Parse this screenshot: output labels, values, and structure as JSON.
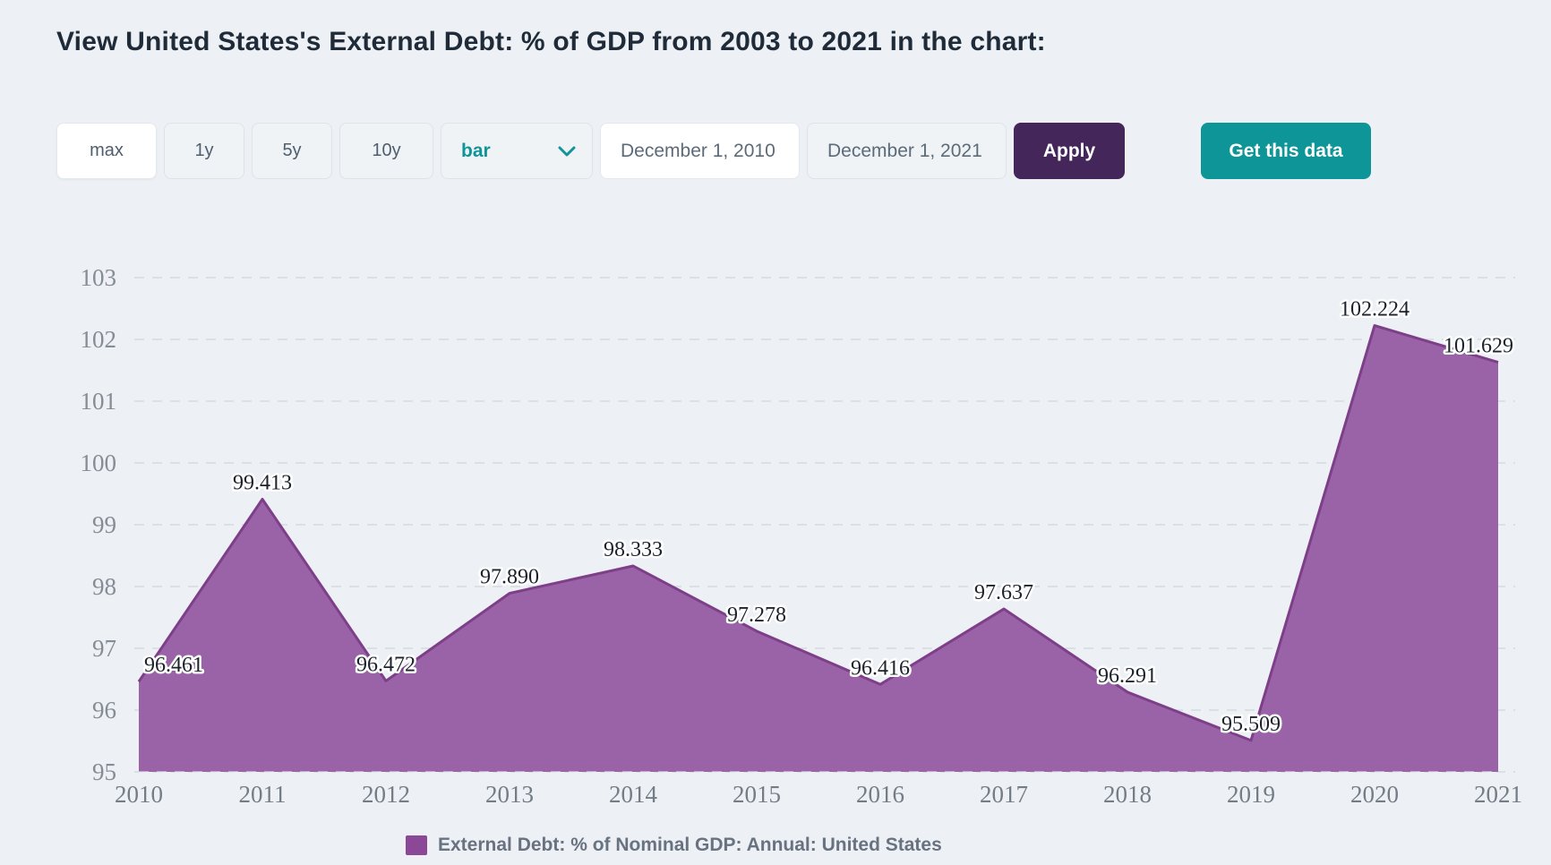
{
  "page": {
    "title": "View United States's External Debt: % of GDP from 2003 to 2021 in the chart:",
    "background": "#edf1f5"
  },
  "toolbar": {
    "range_buttons": [
      {
        "label": "max",
        "active": true
      },
      {
        "label": "1y",
        "active": false
      },
      {
        "label": "5y",
        "active": false
      },
      {
        "label": "10y",
        "active": false
      }
    ],
    "chart_type_select": {
      "value": "bar"
    },
    "start_date": {
      "value": "December 1, 2010"
    },
    "end_date": {
      "value": "December 1, 2021"
    },
    "apply_label": "Apply",
    "get_data_label": "Get this data"
  },
  "chart_data": {
    "type": "area",
    "title": "",
    "xlabel": "",
    "ylabel": "",
    "categories": [
      "2010",
      "2011",
      "2012",
      "2013",
      "2014",
      "2015",
      "2016",
      "2017",
      "2018",
      "2019",
      "2020",
      "2021"
    ],
    "series": [
      {
        "name": "External Debt: % of Nominal GDP: Annual: United States",
        "values": [
          96.461,
          99.413,
          96.472,
          97.89,
          98.333,
          97.278,
          96.416,
          97.637,
          96.291,
          95.509,
          102.224,
          101.629
        ],
        "labels": [
          "96.461",
          "99.413",
          "96.472",
          "97.890",
          "98.333",
          "97.278",
          "96.416",
          "97.637",
          "96.291",
          "95.509",
          "102.224",
          "101.629"
        ]
      }
    ],
    "ylim": [
      95,
      103
    ],
    "y_ticks": [
      95,
      96,
      97,
      98,
      99,
      100,
      101,
      102,
      103
    ],
    "grid": "horizontal-dashed",
    "legend_position": "bottom",
    "colors": {
      "area_fill": "#9b63a7",
      "area_stroke": "#7d3f88",
      "gridline": "#d4dade",
      "y_tick_text": "#858c94",
      "x_tick_text": "#747c86",
      "value_label_text": "#1b222b",
      "legend_swatch": "#8b4897"
    }
  }
}
